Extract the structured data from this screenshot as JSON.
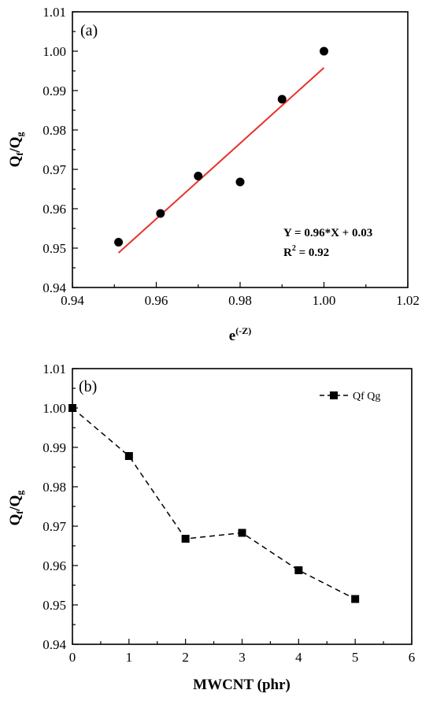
{
  "chart_data": [
    {
      "type": "scatter",
      "panel_label": "(a)",
      "x_title": {
        "base": "e",
        "sup": "(-Z)"
      },
      "y_title": {
        "q1": "Q",
        "s1": "f",
        "slash": "/",
        "q2": "Q",
        "s2": "g"
      },
      "xlim": [
        0.94,
        1.02
      ],
      "ylim": [
        0.94,
        1.01
      ],
      "x_ticks": [
        0.94,
        0.96,
        0.98,
        1.0,
        1.02
      ],
      "x_tick_labels": [
        "0.94",
        "0.96",
        "0.98",
        "1.00",
        "1.02"
      ],
      "y_ticks": [
        0.94,
        0.95,
        0.96,
        0.97,
        0.98,
        0.99,
        1.0,
        1.01
      ],
      "y_tick_labels": [
        "0.94",
        "0.95",
        "0.96",
        "0.97",
        "0.98",
        "0.99",
        "1.00",
        "1.01"
      ],
      "points": [
        {
          "x": 0.951,
          "y": 0.9515
        },
        {
          "x": 0.961,
          "y": 0.9588
        },
        {
          "x": 0.97,
          "y": 0.9683
        },
        {
          "x": 0.98,
          "y": 0.9668
        },
        {
          "x": 0.99,
          "y": 0.9878
        },
        {
          "x": 1.0,
          "y": 1.0
        }
      ],
      "fit_line": {
        "x": [
          0.951,
          1.0
        ],
        "y": [
          0.9488,
          0.9958
        ],
        "color": "#e8322b"
      },
      "annotation_lines": [
        "Y = 0.96*X + 0.03",
        {
          "pre": "R",
          "sup": "2",
          "post": " = 0.92"
        }
      ],
      "grid": false
    },
    {
      "type": "line",
      "panel_label": "(b)",
      "x_title": "MWCNT (phr)",
      "y_title": {
        "q1": "Q",
        "s1": "f",
        "slash": "/",
        "q2": "Q",
        "s2": "g"
      },
      "xlim": [
        0,
        6
      ],
      "ylim": [
        0.94,
        1.01
      ],
      "x_ticks": [
        0,
        1,
        2,
        3,
        4,
        5,
        6
      ],
      "x_tick_labels": [
        "0",
        "1",
        "2",
        "3",
        "4",
        "5",
        "6"
      ],
      "y_ticks": [
        0.94,
        0.95,
        0.96,
        0.97,
        0.98,
        0.99,
        1.0,
        1.01
      ],
      "y_tick_labels": [
        "0.94",
        "0.95",
        "0.96",
        "0.97",
        "0.98",
        "0.99",
        "1.00",
        "1.01"
      ],
      "series": [
        {
          "name": "Qf Qg",
          "x": [
            0,
            1,
            2,
            3,
            4,
            5
          ],
          "values": [
            1.0,
            0.9878,
            0.9668,
            0.9683,
            0.9588,
            0.9515
          ],
          "line_style": "dashed",
          "marker": "square"
        }
      ],
      "legend_placement": "top-right",
      "grid": false
    }
  ]
}
